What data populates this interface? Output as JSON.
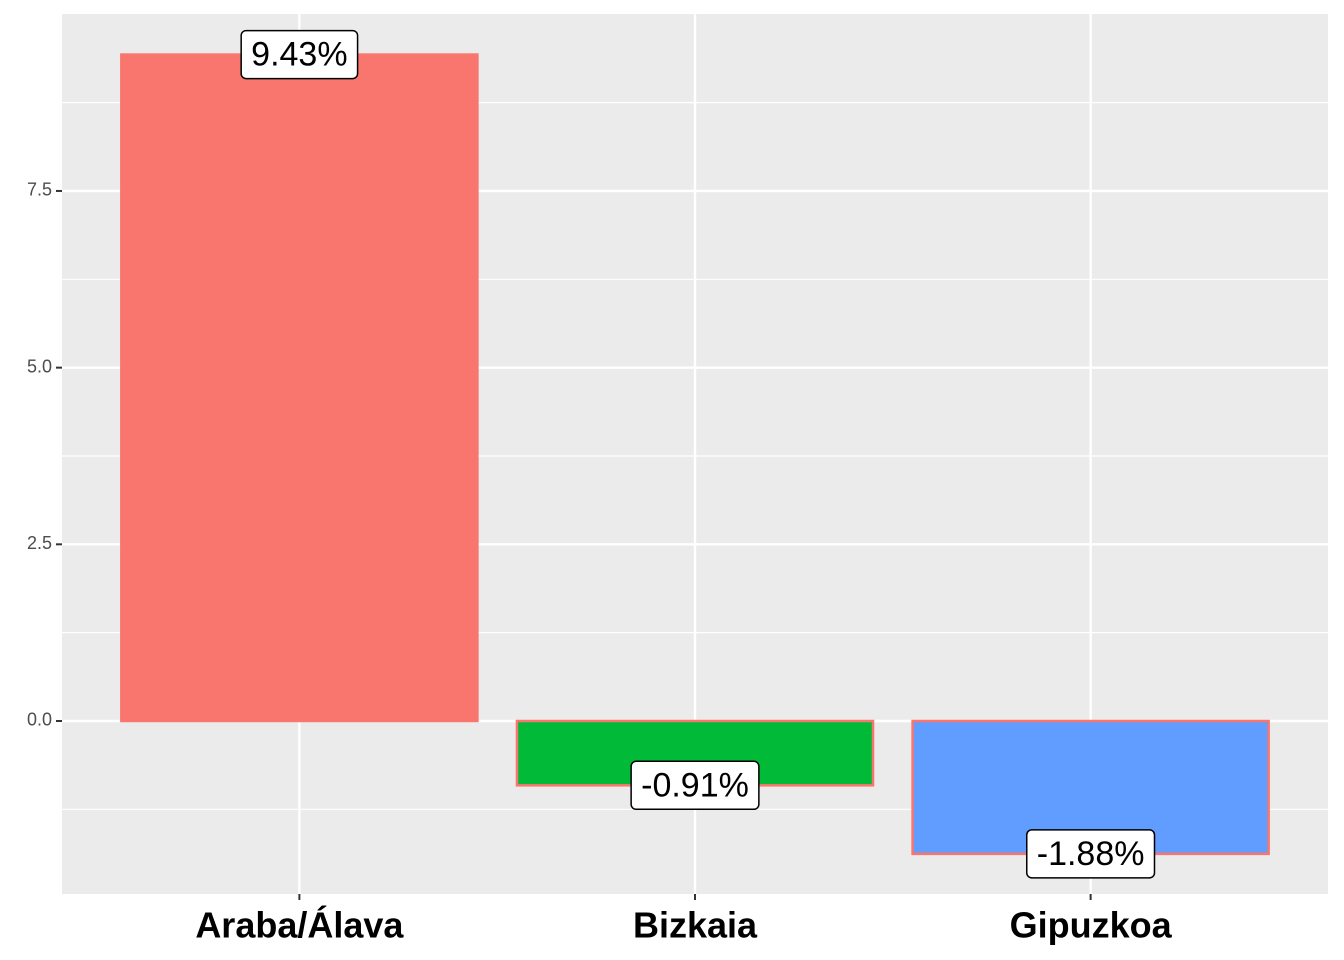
{
  "chart_data": {
    "type": "bar",
    "categories": [
      "Araba/Álava",
      "Bizkaia",
      "Gipuzkoa"
    ],
    "values": [
      9.43,
      -0.91,
      -1.88
    ],
    "value_labels": [
      "9.43%",
      "-0.91%",
      "-1.88%"
    ],
    "colors": [
      "#F8766D",
      "#00BA38",
      "#619CFF"
    ],
    "edgecolor": "#F8766D",
    "ylim": [
      -2.448,
      10.004
    ],
    "yticks": [
      {
        "value": 0,
        "label": "0.0"
      },
      2.5,
      {
        "value": 5,
        "label": "5.0"
      },
      7.5
    ],
    "minor_yticks": [
      -1.25,
      1.25,
      3.75,
      6.25,
      8.75
    ],
    "grid": true
  }
}
